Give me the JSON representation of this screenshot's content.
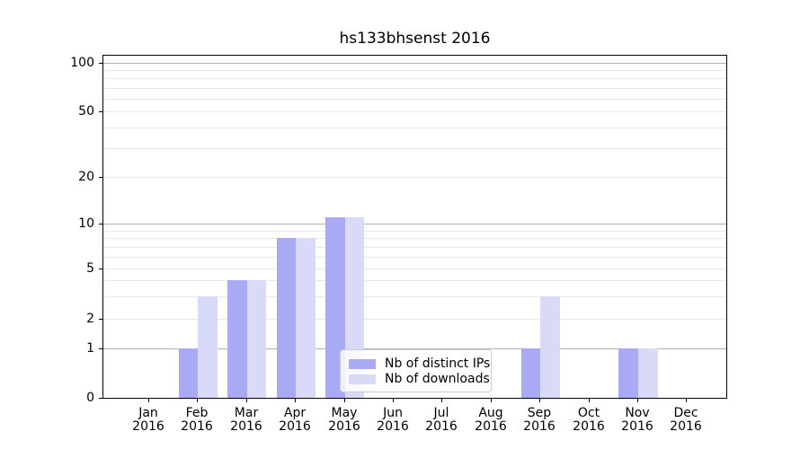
{
  "chart_data": {
    "type": "bar",
    "title": "hs133bhsenst 2016",
    "year_line": "2016",
    "categories": [
      "Jan",
      "Feb",
      "Mar",
      "Apr",
      "May",
      "Jun",
      "Jul",
      "Aug",
      "Sep",
      "Oct",
      "Nov",
      "Dec"
    ],
    "series": [
      {
        "name": "Nb of distinct IPs",
        "color": "#a9a9f4",
        "values": [
          0,
          1,
          4,
          8,
          11,
          0,
          0,
          0,
          1,
          0,
          1,
          0
        ]
      },
      {
        "name": "Nb of downloads",
        "color": "#d9d9f8",
        "values": [
          0,
          3,
          4,
          8,
          11,
          0,
          0,
          0,
          3,
          0,
          1,
          0
        ]
      }
    ],
    "y_axis": {
      "scale": "symlog",
      "tick_values": [
        0,
        1,
        2,
        5,
        10,
        20,
        50,
        100
      ],
      "tick_labels": [
        "0",
        "1",
        "2",
        "5",
        "10",
        "20",
        "50",
        "100"
      ],
      "major_gridlines": [
        1,
        10,
        100
      ],
      "minor_gridlines": [
        2,
        3,
        4,
        5,
        6,
        7,
        8,
        9,
        20,
        30,
        40,
        50,
        60,
        70,
        80,
        90
      ]
    },
    "legend": {
      "entries": [
        "Nb of distinct IPs",
        "Nb of downloads"
      ],
      "position": "lower center"
    },
    "colors": {
      "major_grid": "#b0b0b0",
      "minor_grid": "#e8e8e8",
      "spine": "#000000",
      "text": "#000000",
      "background": "#ffffff"
    }
  }
}
